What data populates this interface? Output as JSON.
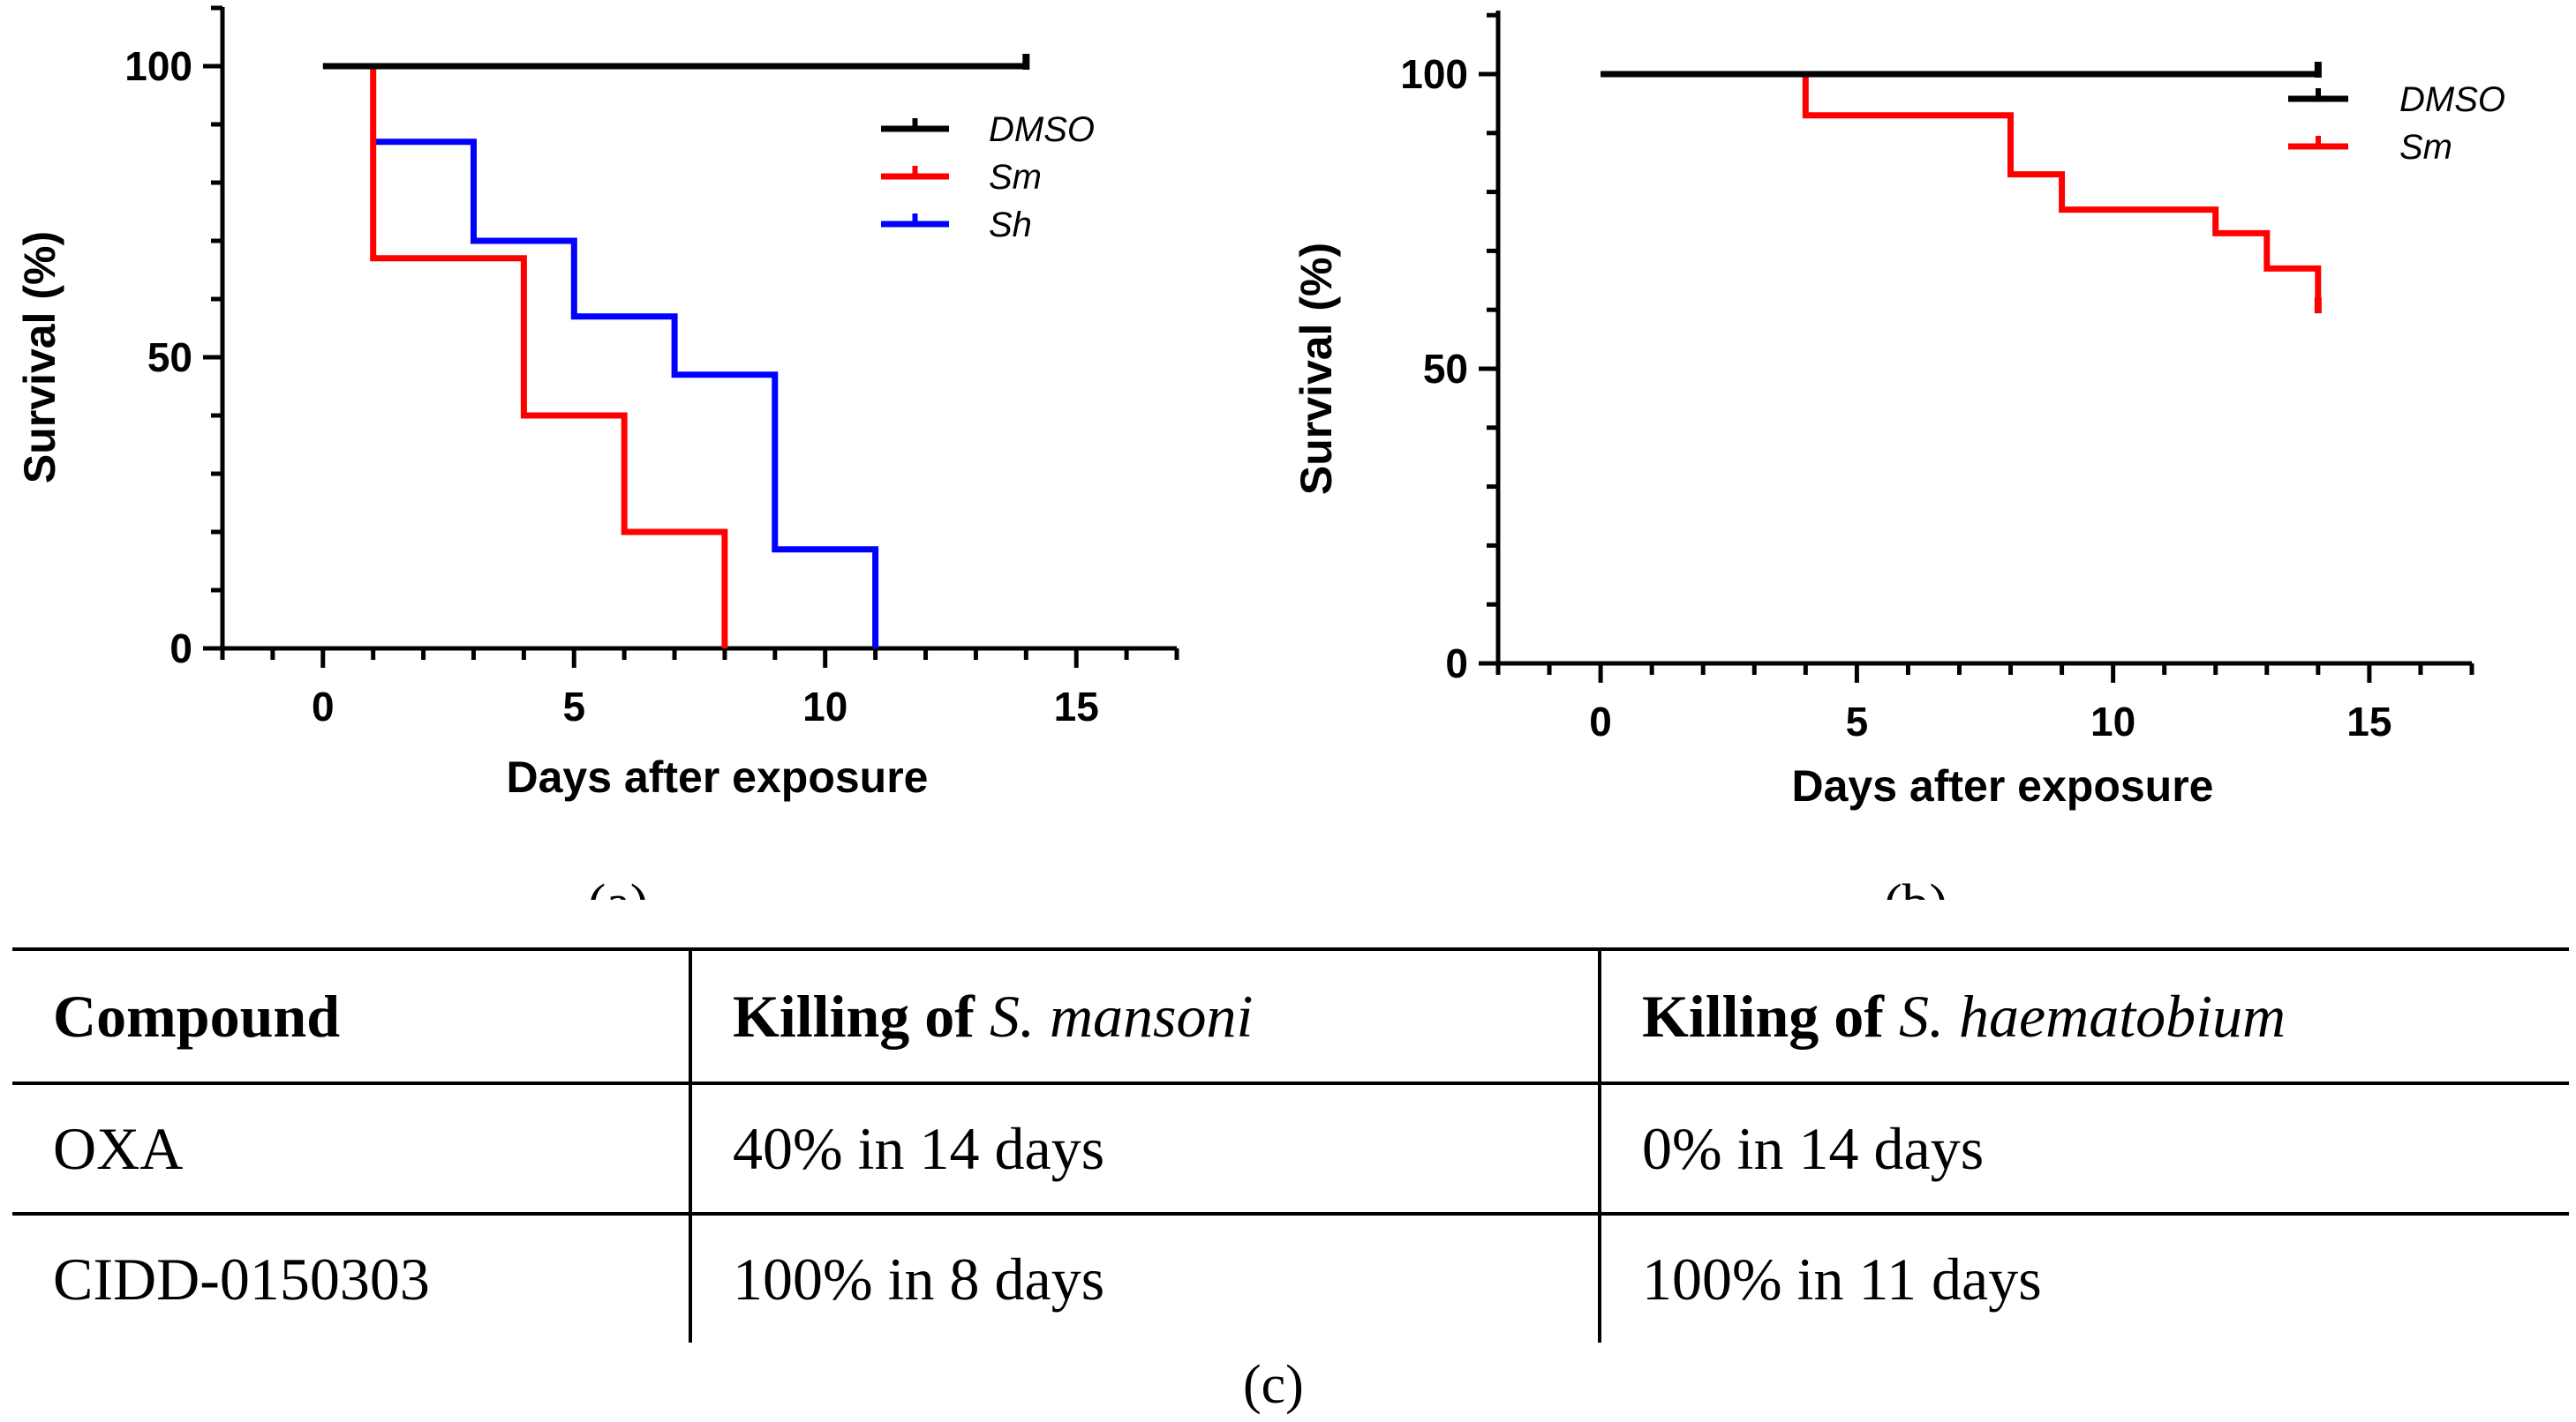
{
  "chart_data": [
    {
      "panel_label": "(a)",
      "type": "line",
      "subtype": "kaplan-meier survival",
      "xlabel": "Days after exposure",
      "ylabel": "Survival (%)",
      "xlim": [
        -2,
        17
      ],
      "ylim": [
        0,
        100
      ],
      "x_ticks": [
        0,
        5,
        10,
        15
      ],
      "y_ticks": [
        0,
        50,
        100
      ],
      "legend_position": "top-right",
      "series": [
        {
          "name": "DMSO",
          "color": "#000000",
          "steps": [
            [
              0,
              100
            ],
            [
              14,
              100
            ]
          ],
          "censored_at": [
            14,
            100
          ]
        },
        {
          "name": "Sm",
          "color": "#ff0000",
          "steps": [
            [
              1,
              100
            ],
            [
              1,
              67
            ],
            [
              4,
              67
            ],
            [
              4,
              40
            ],
            [
              6,
              40
            ],
            [
              6,
              20
            ],
            [
              8,
              20
            ],
            [
              8,
              0
            ]
          ],
          "censored_at": null
        },
        {
          "name": "Sh",
          "color": "#0000ff",
          "steps": [
            [
              1,
              87
            ],
            [
              3,
              87
            ],
            [
              3,
              70
            ],
            [
              5,
              70
            ],
            [
              5,
              57
            ],
            [
              7,
              57
            ],
            [
              7,
              47
            ],
            [
              9,
              47
            ],
            [
              9,
              17
            ],
            [
              11,
              17
            ],
            [
              11,
              0
            ]
          ],
          "censored_at": null
        }
      ]
    },
    {
      "panel_label": "(b)",
      "type": "line",
      "subtype": "kaplan-meier survival",
      "xlabel": "Days after exposure",
      "ylabel": "Survival (%)",
      "xlim": [
        -2,
        17
      ],
      "ylim": [
        0,
        100
      ],
      "x_ticks": [
        0,
        5,
        10,
        15
      ],
      "y_ticks": [
        0,
        50,
        100
      ],
      "legend_position": "top-right",
      "series": [
        {
          "name": "DMSO",
          "color": "#000000",
          "steps": [
            [
              0,
              100
            ],
            [
              14,
              100
            ]
          ],
          "censored_at": [
            14,
            100
          ]
        },
        {
          "name": "Sm",
          "color": "#ff0000",
          "steps": [
            [
              4,
              100
            ],
            [
              4,
              93
            ],
            [
              8,
              93
            ],
            [
              8,
              83
            ],
            [
              9,
              83
            ],
            [
              9,
              77
            ],
            [
              12,
              77
            ],
            [
              12,
              73
            ],
            [
              13,
              73
            ],
            [
              13,
              67
            ],
            [
              14,
              67
            ],
            [
              14,
              60
            ]
          ],
          "censored_at": [
            14,
            60
          ]
        }
      ]
    }
  ],
  "table": {
    "panel_label": "(c)",
    "headers": {
      "c0": "Compound",
      "c1_prefix": "Killing of ",
      "c1_species": "S. mansoni",
      "c2_prefix": "Killing of ",
      "c2_species": "S. haematobium"
    },
    "rows": [
      {
        "compound": "OXA",
        "mansoni": "40% in 14 days",
        "haematobium": "0% in 14 days"
      },
      {
        "compound": "CIDD-0150303",
        "mansoni": "100% in 8 days",
        "haematobium": "100% in 11 days"
      }
    ]
  }
}
